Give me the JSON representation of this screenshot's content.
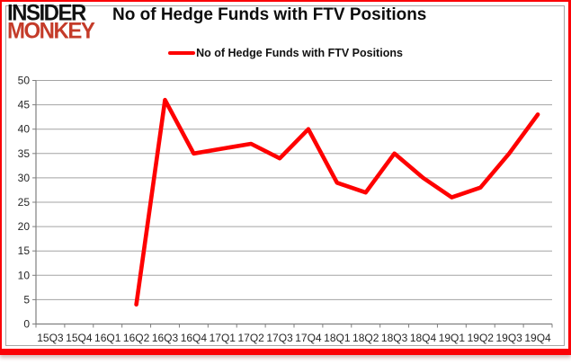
{
  "logo": {
    "line1": "INSIDER",
    "line2": "MONKEY"
  },
  "title": "No of Hedge Funds with FTV Positions",
  "legend": {
    "label": "No of Hedge Funds with FTV Positions",
    "color": "#fe0000"
  },
  "colors": {
    "line": "#fe0000",
    "frame_border": "#fb0207",
    "logo_accent": "#c43b29",
    "gridline": "#a3a3a3",
    "axis": "#7f7f7f",
    "tick_text": "#262626"
  },
  "chart_data": {
    "type": "line",
    "title": "No of Hedge Funds with FTV Positions",
    "categories": [
      "15Q3",
      "15Q4",
      "16Q1",
      "16Q2",
      "16Q3",
      "16Q4",
      "17Q1",
      "17Q2",
      "17Q3",
      "17Q4",
      "18Q1",
      "18Q2",
      "18Q3",
      "18Q4",
      "19Q1",
      "19Q2",
      "19Q3",
      "19Q4"
    ],
    "series": [
      {
        "name": "No of Hedge Funds with FTV Positions",
        "color": "#fe0000",
        "values": [
          null,
          null,
          null,
          4,
          46,
          35,
          36,
          37,
          34,
          40,
          29,
          27,
          35,
          30,
          26,
          28,
          35,
          43
        ]
      }
    ],
    "xlabel": "",
    "ylabel": "",
    "ylim": [
      0,
      50
    ],
    "ytick_step": 5,
    "yticks": [
      0,
      5,
      10,
      15,
      20,
      25,
      30,
      35,
      40,
      45,
      50
    ],
    "grid": true,
    "legend_position": "top"
  }
}
